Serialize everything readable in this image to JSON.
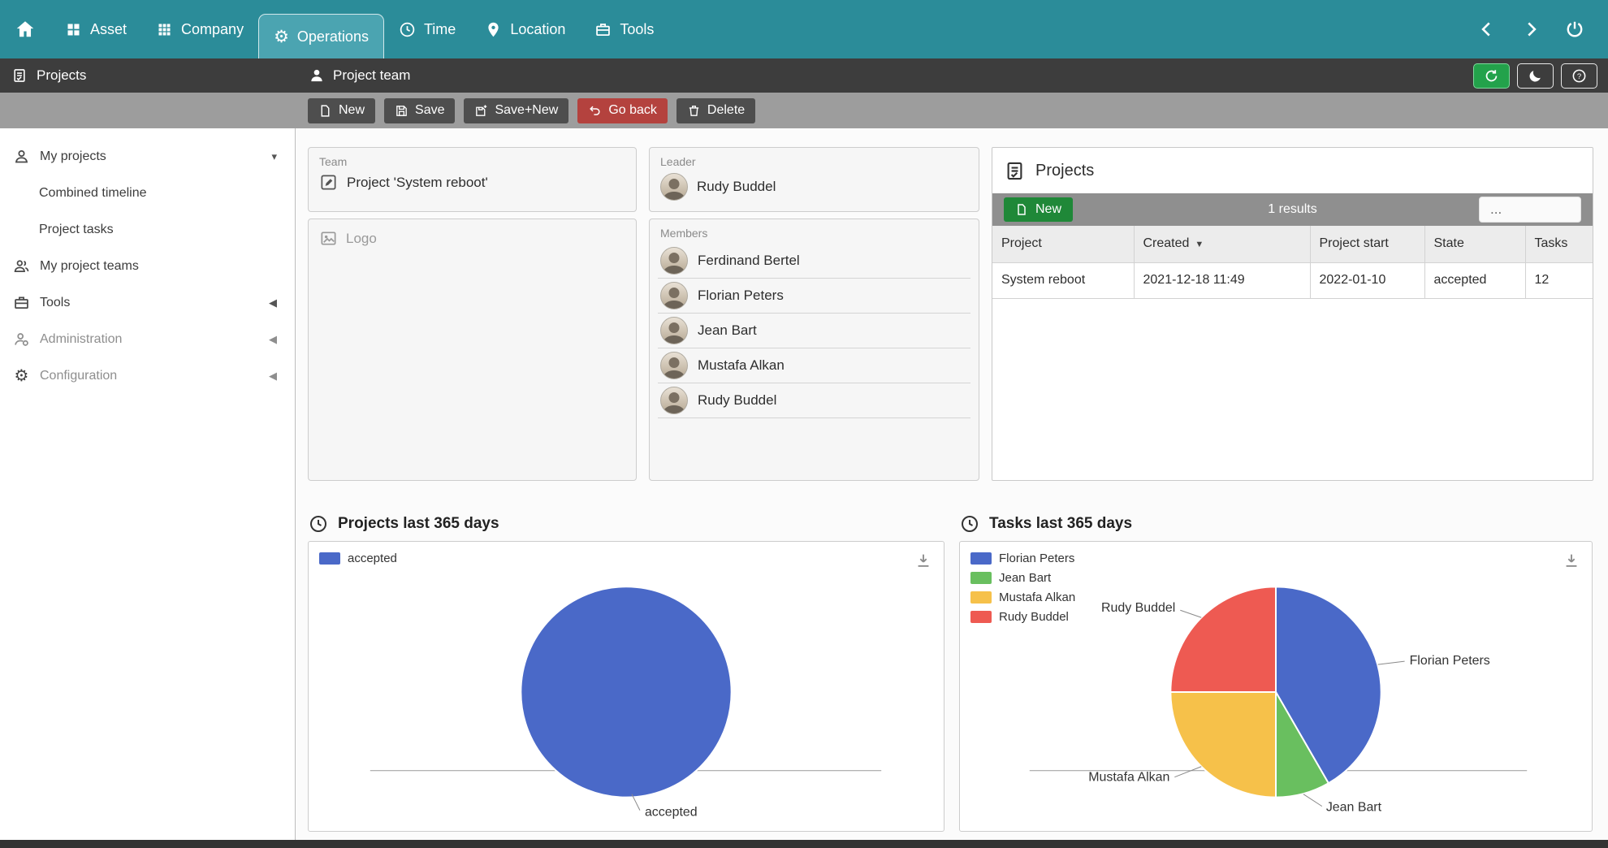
{
  "colors": {
    "nav_teal": "#2b8c99",
    "nav_active": "#4ba4b1",
    "accent_green": "#1f8838",
    "danger_red": "#b4423e",
    "chart_blue": "#4a69c8",
    "chart_green": "#69bf5f",
    "chart_yellow": "#f6c14a",
    "chart_red": "#ee5a52"
  },
  "icons": {
    "gear": "⚙",
    "chevron_down": "▾",
    "chevron_left": "◀"
  },
  "topnav": {
    "items": [
      {
        "label": "Asset"
      },
      {
        "label": "Company"
      },
      {
        "label": "Operations",
        "active": true
      },
      {
        "label": "Time"
      },
      {
        "label": "Location"
      },
      {
        "label": "Tools"
      }
    ]
  },
  "header": {
    "module_title": "Projects",
    "page_title": "Project team"
  },
  "toolbar": {
    "new": "New",
    "save": "Save",
    "save_new": "Save+New",
    "go_back": "Go back",
    "delete": "Delete"
  },
  "sidebar": {
    "items": [
      {
        "label": "My projects"
      },
      {
        "label": "Combined timeline"
      },
      {
        "label": "Project tasks"
      },
      {
        "label": "My project teams"
      },
      {
        "label": "Tools"
      },
      {
        "label": "Administration"
      },
      {
        "label": "Configuration"
      }
    ]
  },
  "form": {
    "team": {
      "label": "Team",
      "value": "Project 'System reboot'"
    },
    "leader": {
      "label": "Leader",
      "value": "Rudy Buddel"
    },
    "logo": {
      "label": "Logo"
    },
    "members": {
      "label": "Members",
      "items": [
        "Ferdinand Bertel",
        "Florian Peters",
        "Jean Bart",
        "Mustafa Alkan",
        "Rudy Buddel"
      ]
    }
  },
  "projects_panel": {
    "title": "Projects",
    "new_button": "New",
    "results_text": "1 results",
    "more_button": "...",
    "columns": [
      "Project",
      "Created",
      "Project start",
      "State",
      "Tasks"
    ],
    "sorted_column": "Created",
    "sort_indicator": "▼",
    "rows": [
      {
        "project": "System reboot",
        "created": "2021-12-18 11:49",
        "project_start": "2022-01-10",
        "state": "accepted",
        "tasks": "12"
      }
    ]
  },
  "chart_data": [
    {
      "type": "pie",
      "title": "Projects last 365 days",
      "legend_position": "top-left",
      "slices": [
        {
          "label": "accepted",
          "value": 1,
          "color": "#4a69c8"
        }
      ]
    },
    {
      "type": "pie",
      "title": "Tasks last 365 days",
      "legend_position": "top-left",
      "slices": [
        {
          "label": "Florian Peters",
          "value": 5,
          "color": "#4a69c8"
        },
        {
          "label": "Jean Bart",
          "value": 1,
          "color": "#69bf5f"
        },
        {
          "label": "Mustafa Alkan",
          "value": 3,
          "color": "#f6c14a"
        },
        {
          "label": "Rudy Buddel",
          "value": 3,
          "color": "#ee5a52"
        }
      ]
    }
  ]
}
